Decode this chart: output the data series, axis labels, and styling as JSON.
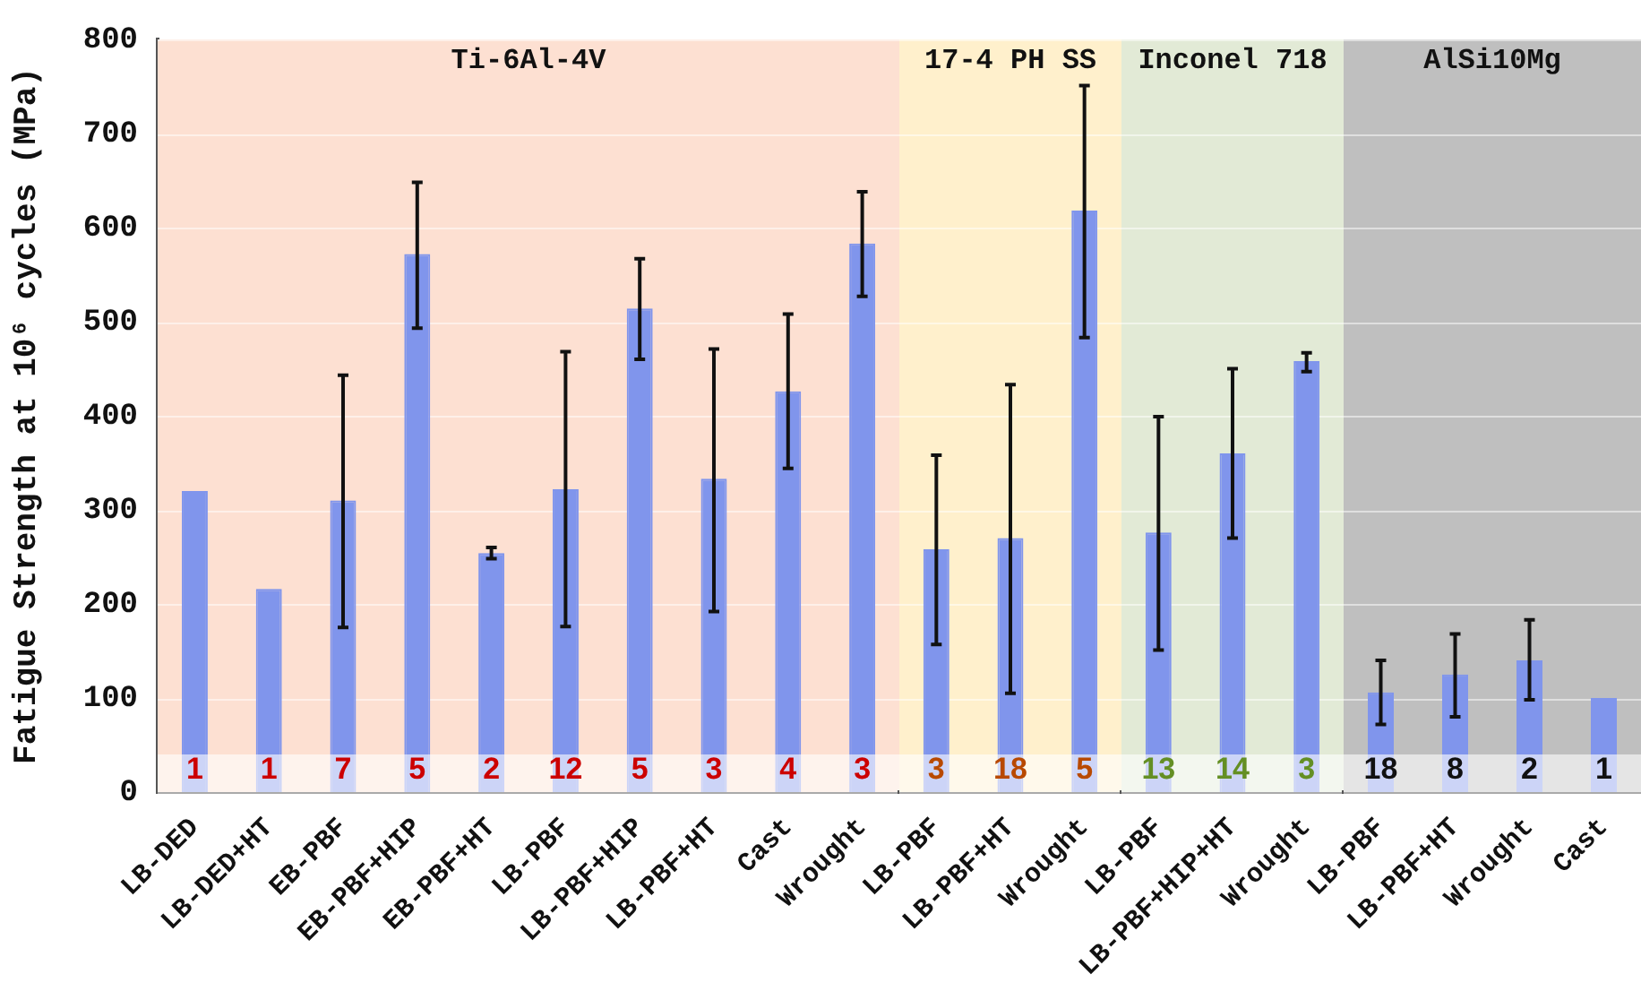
{
  "chart_data": [
    {
      "type": "bar",
      "ylabel": "Fatigue Strength at 10⁶ cycles (MPa)",
      "categories": [
        "LB-DED",
        "LB-DED+HT",
        "EB-PBF",
        "EB-PBF+HIP",
        "EB-PBF+HT",
        "LB-PBF",
        "LB-PBF+HIP",
        "LB-PBF+HT",
        "Cast",
        "Wrought"
      ],
      "values": [
        320,
        216,
        310,
        572,
        254,
        322,
        514,
        333,
        426,
        583
      ],
      "errors": [
        null,
        null,
        [
          175,
          443
        ],
        [
          493,
          648
        ],
        [
          248,
          260
        ],
        [
          176,
          468
        ],
        [
          460,
          567
        ],
        [
          192,
          471
        ],
        [
          344,
          508
        ],
        [
          527,
          638
        ]
      ],
      "color": "#8095ec",
      "ylim": [
        0,
        800
      ],
      "yticks": [
        0,
        100,
        200,
        300,
        400,
        500,
        600,
        700,
        800
      ],
      "grid": "y",
      "bands": [
        {
          "axis": "x",
          "from": "LB-DED",
          "to": "Wrought",
          "label": "Ti-6Al-4V",
          "color": "#fde0d2"
        },
        {
          "axis": "y",
          "from": 0,
          "to": 40,
          "color": "#ffffff"
        }
      ],
      "annotations": [
        "1",
        "1",
        "7",
        "5",
        "2",
        "12",
        "5",
        "3",
        "4",
        "3"
      ]
    },
    {
      "type": "bar",
      "categories": [
        "LB-PBF",
        "LB-PBF+HT",
        "Wrought"
      ],
      "values": [
        258,
        270,
        618
      ],
      "errors": [
        [
          157,
          358
        ],
        [
          105,
          433
        ],
        [
          483,
          751
        ]
      ],
      "color": "#8095ec",
      "ylim": [
        0,
        800
      ],
      "yticks": [
        0,
        100,
        200,
        300,
        400,
        500,
        600,
        700,
        800
      ],
      "grid": "y",
      "tick_labels": "x",
      "bands": [
        {
          "axis": "x",
          "from": "LB-PBF",
          "to": "Wrought",
          "label": "17-4 PH SS",
          "color": "#fff0cc"
        },
        {
          "axis": "y",
          "from": 0,
          "to": 40,
          "color": "#ffffff"
        }
      ],
      "annotations": [
        "3",
        "18",
        "5"
      ]
    },
    {
      "type": "bar",
      "categories": [
        "LB-PBF",
        "LB-PBF+HIP+HT",
        "Wrought"
      ],
      "values": [
        276,
        360,
        458
      ],
      "errors": [
        [
          151,
          399
        ],
        [
          270,
          450
        ],
        [
          447,
          467
        ]
      ],
      "color": "#8095ec",
      "ylim": [
        0,
        800
      ],
      "yticks": [
        0,
        100,
        200,
        300,
        400,
        500,
        600,
        700,
        800
      ],
      "grid": "y",
      "tick_labels": "x",
      "bands": [
        {
          "axis": "x",
          "from": "LB-PBF",
          "to": "Wrought",
          "label": "Inconel 718",
          "color": "#e2ead6"
        },
        {
          "axis": "y",
          "from": 0,
          "to": 40,
          "color": "#ffffff"
        }
      ],
      "annotations": [
        "13",
        "14",
        "3"
      ]
    },
    {
      "type": "bar",
      "categories": [
        "LB-PBF",
        "LB-PBF+HT",
        "Wrought",
        "Cast"
      ],
      "values": [
        106,
        125,
        140,
        100
      ],
      "errors": [
        [
          72,
          140
        ],
        [
          80,
          168
        ],
        [
          98,
          183
        ],
        null
      ],
      "color": "#8095ec",
      "ylim": [
        0,
        800
      ],
      "yticks": [
        0,
        100,
        200,
        300,
        400,
        500,
        600,
        700,
        800
      ],
      "grid": "y",
      "tick_labels": "x",
      "bands": [
        {
          "axis": "x",
          "from": "LB-PBF",
          "to": "Cast",
          "label": "AlSi10Mg",
          "color": "#bfbfbf"
        },
        {
          "axis": "y",
          "from": 0,
          "to": 40,
          "color": "#ffffff"
        }
      ],
      "annotations": [
        "18",
        "8",
        "2",
        "1"
      ]
    }
  ]
}
